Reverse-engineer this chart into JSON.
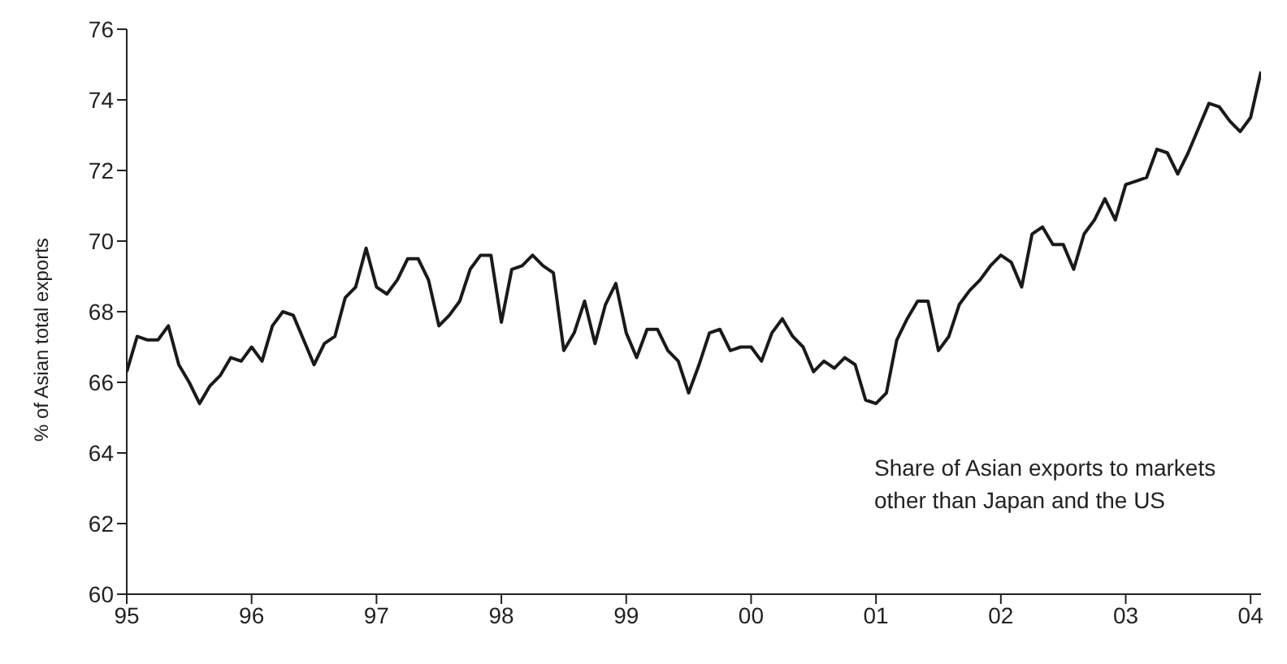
{
  "chart_data": {
    "type": "line",
    "ylabel": "% of Asian total exports",
    "annotations": [
      "Share of Asian exports to markets other than Japan and the US"
    ],
    "x": [
      "1995-01",
      "1995-02",
      "1995-03",
      "1995-04",
      "1995-05",
      "1995-06",
      "1995-07",
      "1995-08",
      "1995-09",
      "1995-10",
      "1995-11",
      "1995-12",
      "1996-01",
      "1996-02",
      "1996-03",
      "1996-04",
      "1996-05",
      "1996-06",
      "1996-07",
      "1996-08",
      "1996-09",
      "1996-10",
      "1996-11",
      "1996-12",
      "1997-01",
      "1997-02",
      "1997-03",
      "1997-04",
      "1997-05",
      "1997-06",
      "1997-07",
      "1997-08",
      "1997-09",
      "1997-10",
      "1997-11",
      "1997-12",
      "1998-01",
      "1998-02",
      "1998-03",
      "1998-04",
      "1998-05",
      "1998-06",
      "1998-07",
      "1998-08",
      "1998-09",
      "1998-10",
      "1998-11",
      "1998-12",
      "1999-01",
      "1999-02",
      "1999-03",
      "1999-04",
      "1999-05",
      "1999-06",
      "1999-07",
      "1999-08",
      "1999-09",
      "1999-10",
      "1999-11",
      "1999-12",
      "2000-01",
      "2000-02",
      "2000-03",
      "2000-04",
      "2000-05",
      "2000-06",
      "2000-07",
      "2000-08",
      "2000-09",
      "2000-10",
      "2000-11",
      "2000-12",
      "2001-01",
      "2001-02",
      "2001-03",
      "2001-04",
      "2001-05",
      "2001-06",
      "2001-07",
      "2001-08",
      "2001-09",
      "2001-10",
      "2001-11",
      "2001-12",
      "2002-01",
      "2002-02",
      "2002-03",
      "2002-04",
      "2002-05",
      "2002-06",
      "2002-07",
      "2002-08",
      "2002-09",
      "2002-10",
      "2002-11",
      "2002-12",
      "2003-01",
      "2003-02",
      "2003-03",
      "2003-04",
      "2003-05",
      "2003-06",
      "2003-07",
      "2003-08",
      "2003-09",
      "2003-10",
      "2003-11",
      "2003-12",
      "2004-01",
      "2004-02"
    ],
    "series": [
      {
        "color": "#1a1a1a",
        "values": [
          66.3,
          67.3,
          67.2,
          67.2,
          67.6,
          66.5,
          66.0,
          65.4,
          65.9,
          66.2,
          66.7,
          66.6,
          67.0,
          66.6,
          67.6,
          68.0,
          67.9,
          67.2,
          66.5,
          67.1,
          67.3,
          68.4,
          68.7,
          69.8,
          68.7,
          68.5,
          68.9,
          69.5,
          69.5,
          68.9,
          67.6,
          67.9,
          68.3,
          69.2,
          69.6,
          69.6,
          67.7,
          69.2,
          69.3,
          69.6,
          69.3,
          69.1,
          66.9,
          67.4,
          68.3,
          67.1,
          68.2,
          68.8,
          67.4,
          66.7,
          67.5,
          67.5,
          66.9,
          66.6,
          65.7,
          66.5,
          67.4,
          67.5,
          66.9,
          67.0,
          67.0,
          66.6,
          67.4,
          67.8,
          67.3,
          67.0,
          66.3,
          66.6,
          66.4,
          66.7,
          66.5,
          65.5,
          65.4,
          65.7,
          67.2,
          67.8,
          68.3,
          68.3,
          66.9,
          67.3,
          68.2,
          68.6,
          68.9,
          69.3,
          69.6,
          69.4,
          68.7,
          70.2,
          70.4,
          69.9,
          69.9,
          69.2,
          70.2,
          70.6,
          71.2,
          70.6,
          71.6,
          71.7,
          71.8,
          72.6,
          72.5,
          71.9,
          72.5,
          73.2,
          73.9,
          73.8,
          73.4,
          73.1,
          73.5,
          74.8
        ]
      }
    ],
    "xlim": [
      "1995-01",
      "2004-02"
    ],
    "xticks": [
      {
        "value": "1995-01",
        "label": "95"
      },
      {
        "value": "1996-01",
        "label": "96"
      },
      {
        "value": "1997-01",
        "label": "97"
      },
      {
        "value": "1998-01",
        "label": "98"
      },
      {
        "value": "1999-01",
        "label": "99"
      },
      {
        "value": "2000-01",
        "label": "00"
      },
      {
        "value": "2001-01",
        "label": "01"
      },
      {
        "value": "2002-01",
        "label": "02"
      },
      {
        "value": "2003-01",
        "label": "03"
      },
      {
        "value": "2004-01",
        "label": "04"
      }
    ],
    "ylim": [
      60,
      76
    ],
    "yticks": [
      60,
      62,
      64,
      66,
      68,
      70,
      72,
      74,
      76
    ],
    "marker": "none",
    "line_style": "solid",
    "grid": false,
    "legend": false
  }
}
